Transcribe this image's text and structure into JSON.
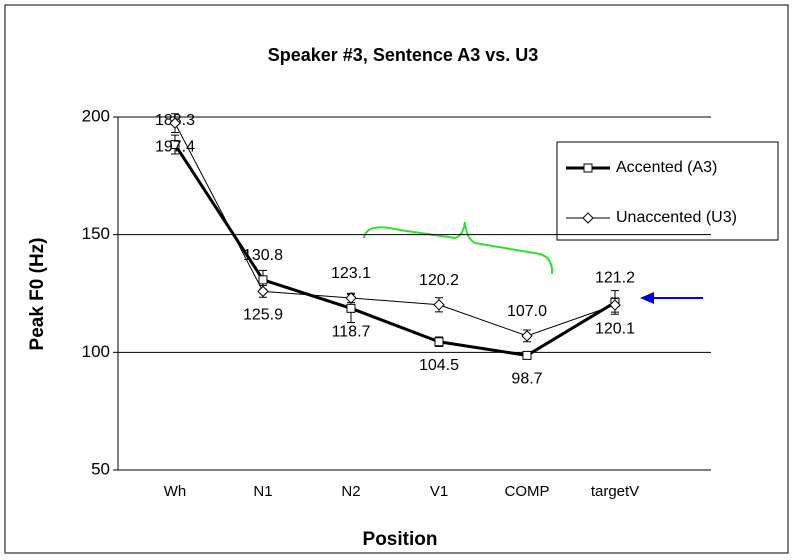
{
  "chart_data": {
    "type": "line",
    "title": "Speaker #3, Sentence A3 vs. U3",
    "x_label": "Position",
    "y_label": "Peak F0 (Hz)",
    "categories": [
      "Wh",
      "N1",
      "N2",
      "V1",
      "COMP",
      "targetV"
    ],
    "series": [
      {
        "name": "Accented (A3)",
        "color": "#000000",
        "marker": "square",
        "values": [
          188.3,
          130.8,
          118.7,
          104.5,
          98.7,
          121.2
        ],
        "value_labels": [
          "188.3",
          "130.8",
          "118.7",
          "104.5",
          "98.7",
          "121.2"
        ],
        "errors": [
          4,
          4,
          6,
          2,
          1.5,
          5
        ]
      },
      {
        "name": "Unaccented (U3)",
        "color": "#000000",
        "marker": "diamond",
        "values": [
          197.4,
          125.9,
          123.1,
          120.2,
          107.0,
          120.1
        ],
        "value_labels": [
          "197.4",
          "125.9",
          "123.1",
          "120.2",
          "107.0",
          "120.1"
        ],
        "errors": [
          4,
          2.5,
          2,
          3,
          2.5,
          3
        ]
      }
    ],
    "ylim": [
      50,
      200
    ],
    "yticks": [
      50,
      100,
      150,
      200
    ],
    "grid": true,
    "legend": "right"
  }
}
